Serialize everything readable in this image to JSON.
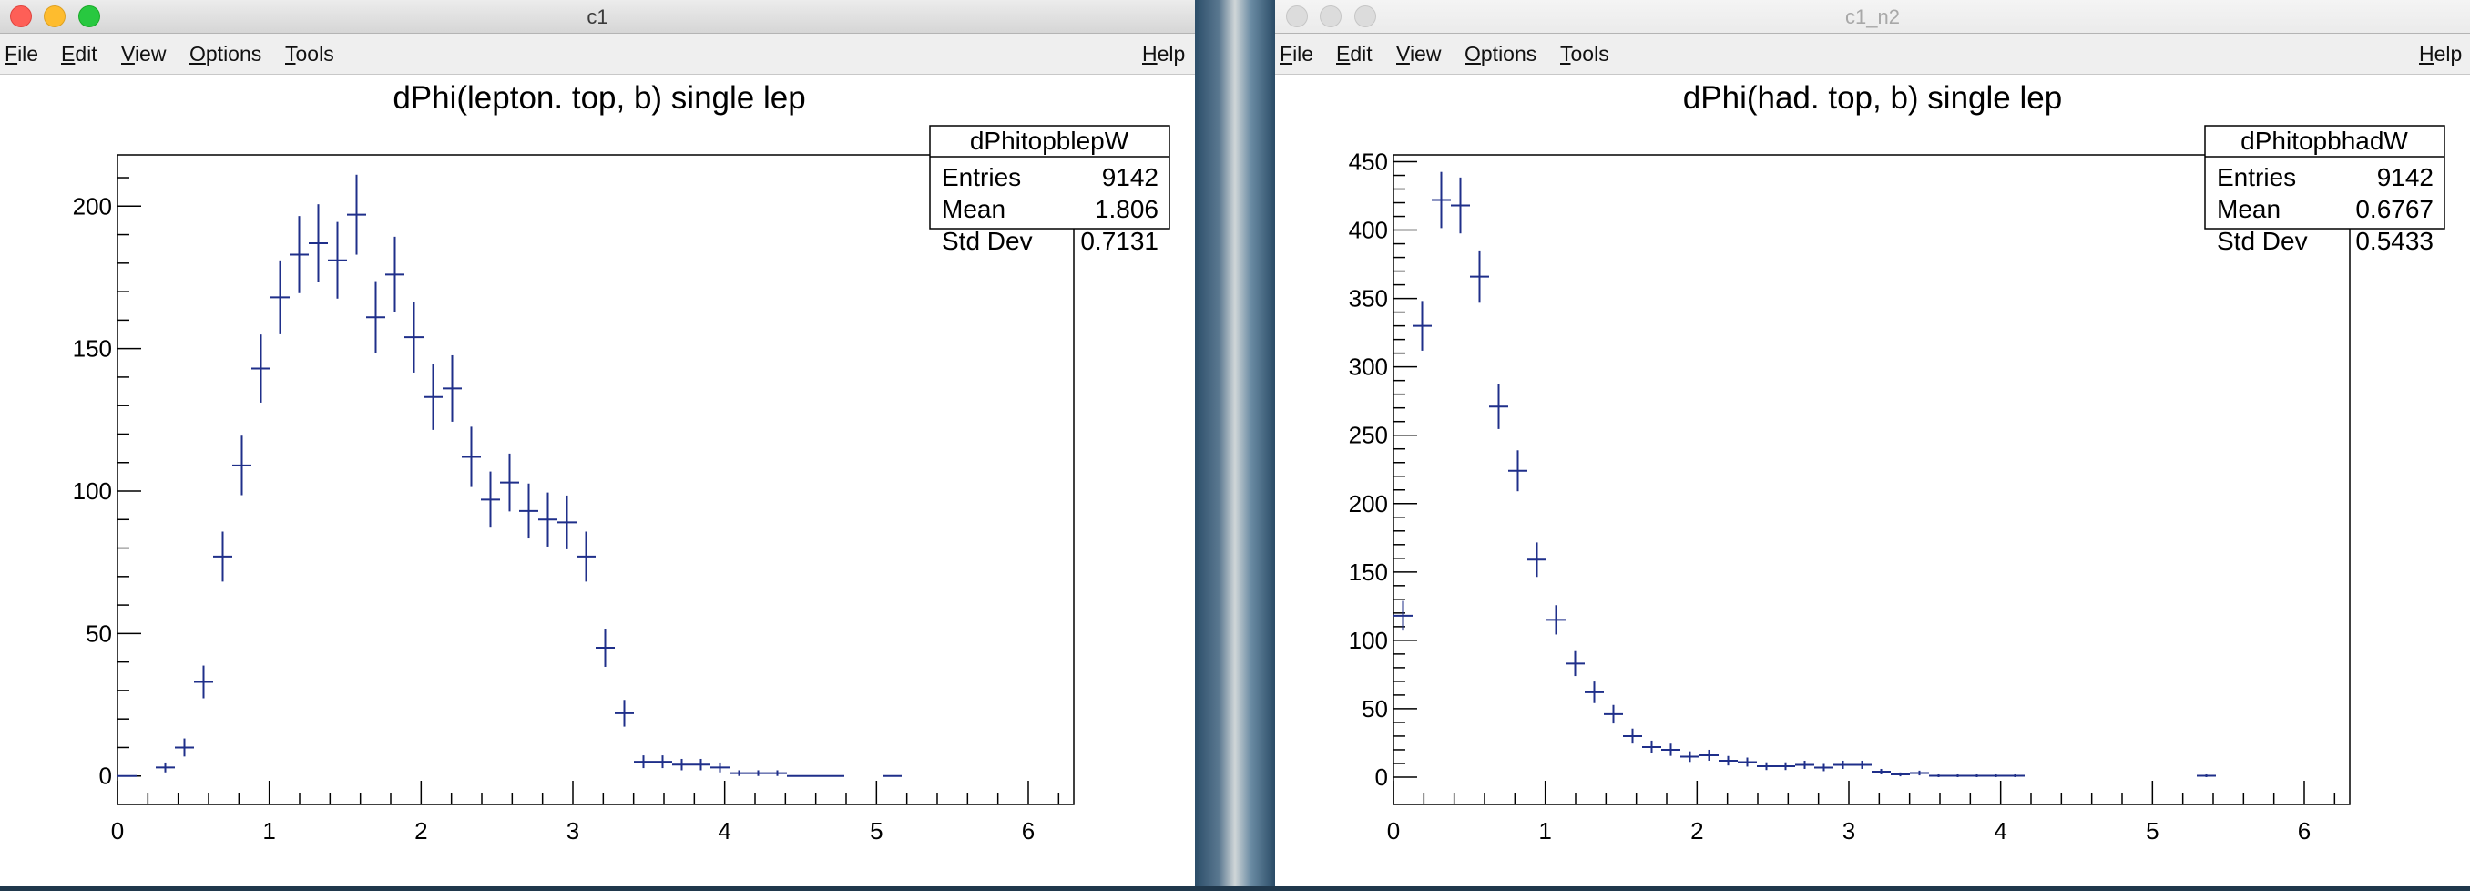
{
  "windows": [
    {
      "title": "c1",
      "menus": [
        {
          "ul": "F",
          "rest": "ile"
        },
        {
          "ul": "E",
          "rest": "dit"
        },
        {
          "ul": "V",
          "rest": "iew"
        },
        {
          "ul": "O",
          "rest": "ptions"
        },
        {
          "ul": "T",
          "rest": "ools"
        }
      ],
      "help": {
        "ul": "H",
        "rest": "elp"
      }
    },
    {
      "title": "c1_n2",
      "menus": [
        {
          "ul": "F",
          "rest": "ile"
        },
        {
          "ul": "E",
          "rest": "dit"
        },
        {
          "ul": "V",
          "rest": "iew"
        },
        {
          "ul": "O",
          "rest": "ptions"
        },
        {
          "ul": "T",
          "rest": "ools"
        }
      ],
      "help": {
        "ul": "H",
        "rest": "elp"
      }
    }
  ],
  "chart_data": [
    {
      "type": "scatter",
      "title": "dPhi(lepton. top, b) single lep",
      "xlabel": "",
      "ylabel": "",
      "xlim": [
        0,
        6.3
      ],
      "ylim": [
        -10,
        218
      ],
      "xticks": [
        0,
        1,
        2,
        3,
        4,
        5,
        6
      ],
      "yticks": [
        0,
        50,
        100,
        150,
        200
      ],
      "bin_width": 0.126,
      "stats": {
        "name": "dPhitopblepW",
        "entries_label": "Entries",
        "entries": "9142",
        "mean_label": "Mean",
        "mean": "1.806",
        "std_label": "Std Dev",
        "std": "0.7131"
      },
      "x": [
        0.063,
        0.315,
        0.441,
        0.567,
        0.693,
        0.819,
        0.945,
        1.071,
        1.197,
        1.323,
        1.449,
        1.575,
        1.701,
        1.827,
        1.953,
        2.079,
        2.205,
        2.331,
        2.457,
        2.583,
        2.709,
        2.835,
        2.961,
        3.087,
        3.213,
        3.339,
        3.465,
        3.591,
        3.717,
        3.843,
        3.969,
        4.095,
        4.221,
        4.347,
        4.473,
        4.599,
        4.725,
        5.103
      ],
      "y": [
        0,
        3,
        10,
        33,
        77,
        109,
        143,
        168,
        183,
        187,
        181,
        197,
        161,
        176,
        154,
        133,
        136,
        112,
        97,
        103,
        93,
        90,
        89,
        77,
        45,
        22,
        5,
        5,
        4,
        4,
        3,
        1,
        1,
        1,
        0,
        0,
        0,
        0
      ]
    },
    {
      "type": "scatter",
      "title": "dPhi(had. top, b) single lep",
      "xlabel": "",
      "ylabel": "",
      "xlim": [
        0,
        6.3
      ],
      "ylim": [
        -20,
        455
      ],
      "xticks": [
        0,
        1,
        2,
        3,
        4,
        5,
        6
      ],
      "yticks": [
        0,
        50,
        100,
        150,
        200,
        250,
        300,
        350,
        400,
        450
      ],
      "bin_width": 0.126,
      "stats": {
        "name": "dPhitopbhadW",
        "entries_label": "Entries",
        "entries": "9142",
        "mean_label": "Mean",
        "mean": "0.6767",
        "std_label": "Std Dev",
        "std": "0.5433"
      },
      "x": [
        0.063,
        0.189,
        0.315,
        0.441,
        0.567,
        0.693,
        0.819,
        0.945,
        1.071,
        1.197,
        1.323,
        1.449,
        1.575,
        1.701,
        1.827,
        1.953,
        2.079,
        2.205,
        2.331,
        2.457,
        2.583,
        2.709,
        2.835,
        2.961,
        3.087,
        3.213,
        3.339,
        3.465,
        3.591,
        3.717,
        3.843,
        3.969,
        4.095,
        5.355
      ],
      "y": [
        118,
        330,
        422,
        418,
        366,
        271,
        224,
        159,
        115,
        83,
        62,
        46,
        30,
        22,
        20,
        15,
        16,
        12,
        11,
        8,
        8,
        9,
        7,
        9,
        9,
        4,
        2,
        3,
        1,
        1,
        1,
        1,
        1,
        1
      ]
    }
  ]
}
